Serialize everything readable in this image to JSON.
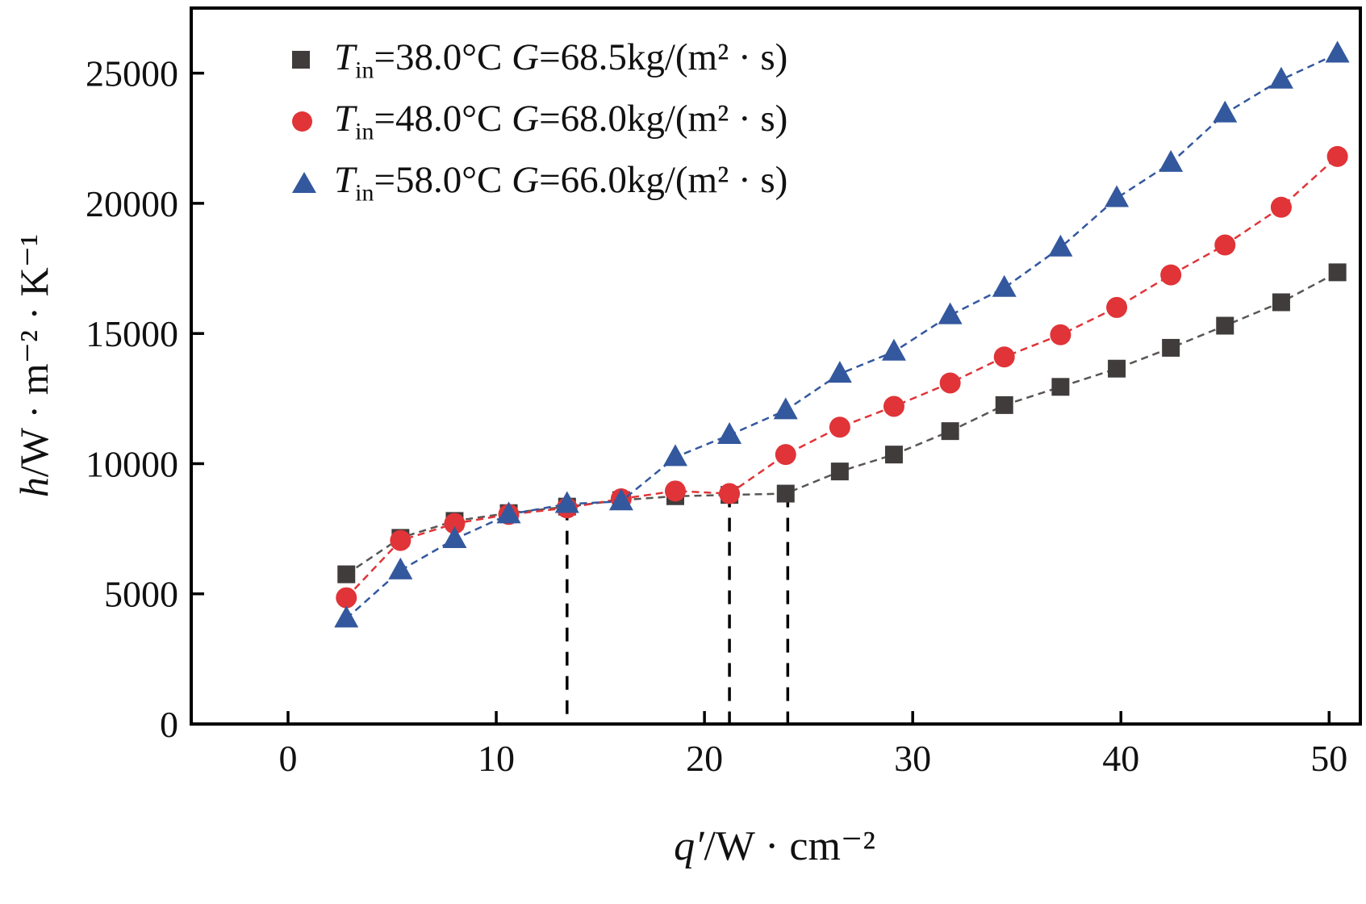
{
  "figure": {
    "background": "#ffffff",
    "border_color": "#000000",
    "ylabel": {
      "var": "h",
      "rest": "/W · m⁻² · K⁻¹"
    },
    "xlabel": {
      "var": "q′",
      "rest": "/W · cm⁻²"
    }
  },
  "chart_data": {
    "type": "scatter",
    "title": "",
    "xlabel": "q′/W · cm⁻²",
    "ylabel": "h/W · m⁻² · K⁻¹",
    "xlim": [
      -4.65,
      51.5
    ],
    "ylim": [
      0,
      27500
    ],
    "xticks": [
      0,
      10,
      20,
      30,
      40,
      50
    ],
    "yticks": [
      0,
      5000,
      10000,
      15000,
      20000,
      25000
    ],
    "grid": false,
    "legend_position": "top-left-inside",
    "series": [
      {
        "name": "Tin=38.0°C G=68.5kg/(m²·s)",
        "marker": "square",
        "color": "#403c3c",
        "line_color": "#5a5656",
        "legend": {
          "t": "T",
          "t_sub": "in",
          "t_rest": "=38.0°C  ",
          "g": "G",
          "g_rest": "=68.5kg/(m² · s)"
        },
        "x": [
          2.8,
          5.4,
          8.0,
          10.6,
          13.4,
          16.0,
          18.6,
          21.2,
          23.9,
          26.5,
          29.1,
          31.8,
          34.4,
          37.1,
          39.8,
          42.4,
          45.0,
          47.7,
          50.4
        ],
        "y": [
          5750,
          7150,
          7800,
          8100,
          8350,
          8600,
          8750,
          8800,
          8850,
          9700,
          10350,
          11250,
          12250,
          12950,
          13650,
          14450,
          15300,
          16200,
          17350
        ]
      },
      {
        "name": "Tin=48.0°C G=68.0kg/(m²·s)",
        "marker": "circle",
        "color": "#e03438",
        "line_color": "#e03438",
        "legend": {
          "t": "T",
          "t_sub": "in",
          "t_rest": "=48.0°C  ",
          "g": "G",
          "g_rest": "=68.0kg/(m² · s)"
        },
        "x": [
          2.8,
          5.4,
          8.0,
          10.6,
          13.4,
          16.0,
          18.6,
          21.2,
          23.9,
          26.5,
          29.1,
          31.8,
          34.4,
          37.1,
          39.8,
          42.4,
          45.0,
          47.7,
          50.4
        ],
        "y": [
          4850,
          7050,
          7700,
          8050,
          8300,
          8650,
          8950,
          8850,
          10350,
          11400,
          12200,
          13100,
          14100,
          14950,
          16000,
          17250,
          18400,
          19850,
          21800
        ]
      },
      {
        "name": "Tin=58.0°C G=66.0kg/(m²·s)",
        "marker": "triangle",
        "color": "#33589e",
        "line_color": "#33589e",
        "legend": {
          "t": "T",
          "t_sub": "in",
          "t_rest": "=58.0°C  ",
          "g": "G",
          "g_rest": "=66.0kg/(m² · s)"
        },
        "x": [
          2.8,
          5.4,
          8.0,
          10.6,
          13.4,
          16.0,
          18.6,
          21.2,
          23.9,
          26.5,
          29.1,
          31.8,
          34.4,
          37.1,
          39.8,
          42.4,
          45.0,
          47.7,
          50.4
        ],
        "y": [
          4050,
          5900,
          7100,
          8050,
          8450,
          8550,
          10250,
          11100,
          12050,
          13450,
          14300,
          15700,
          16750,
          18300,
          20200,
          21550,
          23450,
          24750,
          25750
        ]
      }
    ],
    "dashed_vlines": [
      {
        "x": 13.4,
        "y": 8350
      },
      {
        "x": 21.2,
        "y": 8850
      },
      {
        "x": 24.0,
        "y": 8850
      }
    ]
  }
}
